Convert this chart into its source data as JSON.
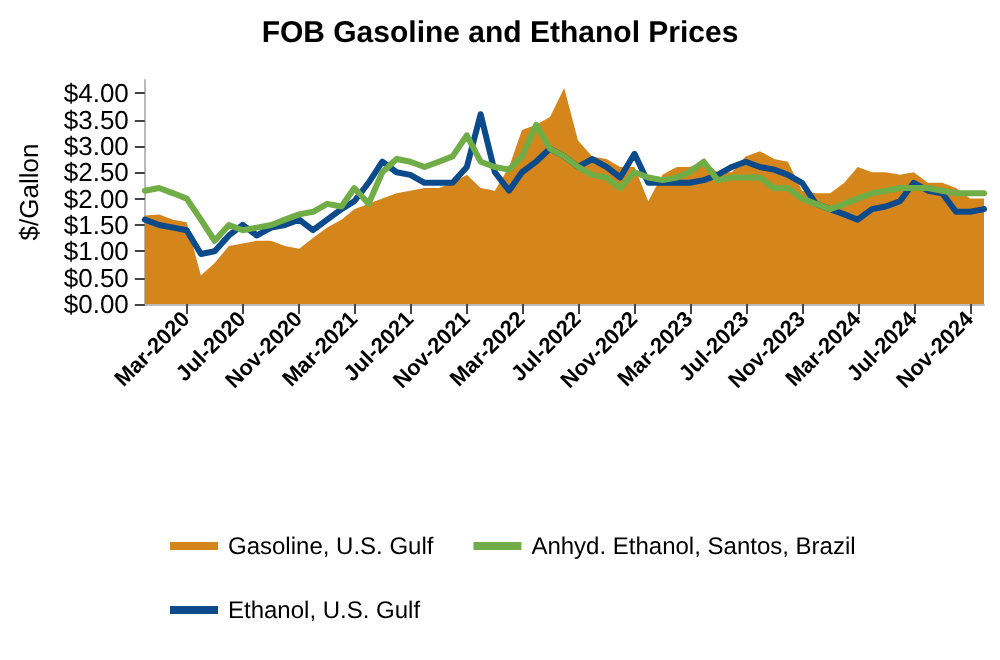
{
  "chart_data": {
    "type": "area",
    "title": "FOB Gasoline and Ethanol Prices",
    "ylabel": "$/Gallon",
    "x": [
      "2019-12",
      "2020-01",
      "2020-02",
      "2020-03",
      "2020-04",
      "2020-05",
      "2020-06",
      "2020-07",
      "2020-08",
      "2020-09",
      "2020-10",
      "2020-11",
      "2020-12",
      "2021-01",
      "2021-02",
      "2021-03",
      "2021-04",
      "2021-05",
      "2021-06",
      "2021-07",
      "2021-08",
      "2021-09",
      "2021-10",
      "2021-11",
      "2021-12",
      "2022-01",
      "2022-02",
      "2022-03",
      "2022-04",
      "2022-05",
      "2022-06",
      "2022-07",
      "2022-08",
      "2022-09",
      "2022-10",
      "2022-11",
      "2022-12",
      "2023-01",
      "2023-02",
      "2023-03",
      "2023-04",
      "2023-05",
      "2023-06",
      "2023-07",
      "2023-08",
      "2023-09",
      "2023-10",
      "2023-11",
      "2023-12",
      "2024-01",
      "2024-02",
      "2024-03",
      "2024-04",
      "2024-05",
      "2024-06",
      "2024-07",
      "2024-08",
      "2024-09",
      "2024-10",
      "2024-11",
      "2024-12"
    ],
    "series": [
      {
        "name": "Gasoline, U.S. Gulf",
        "color": "#d4861c",
        "values": [
          1.68,
          1.7,
          1.6,
          1.55,
          0.54,
          0.78,
          1.1,
          1.15,
          1.2,
          1.2,
          1.1,
          1.05,
          1.25,
          1.45,
          1.6,
          1.8,
          1.9,
          2.0,
          2.1,
          2.15,
          2.2,
          2.2,
          2.3,
          2.45,
          2.2,
          2.15,
          2.6,
          3.3,
          3.4,
          3.55,
          4.1,
          3.1,
          2.8,
          2.75,
          2.6,
          2.6,
          1.95,
          2.45,
          2.6,
          2.6,
          2.7,
          2.5,
          2.5,
          2.8,
          2.9,
          2.75,
          2.7,
          2.15,
          2.1,
          2.1,
          2.3,
          2.6,
          2.5,
          2.5,
          2.45,
          2.5,
          2.3,
          2.3,
          2.2,
          2.0,
          2.0
        ]
      },
      {
        "name": "Anhyd. Ethanol, Santos, Brazil",
        "type": "line",
        "color": "#70ad47",
        "values": [
          2.15,
          2.2,
          2.1,
          2.0,
          1.6,
          1.2,
          1.5,
          1.4,
          1.45,
          1.5,
          1.6,
          1.7,
          1.75,
          1.9,
          1.85,
          2.2,
          1.9,
          2.5,
          2.75,
          2.7,
          2.6,
          2.7,
          2.8,
          3.2,
          2.7,
          2.6,
          2.55,
          2.8,
          3.4,
          2.95,
          2.8,
          2.6,
          2.45,
          2.4,
          2.2,
          2.5,
          2.4,
          2.35,
          2.4,
          2.5,
          2.7,
          2.35,
          2.4,
          2.4,
          2.4,
          2.2,
          2.2,
          2.0,
          1.9,
          1.8,
          1.9,
          2.0,
          2.1,
          2.15,
          2.2,
          2.2,
          2.2,
          2.15,
          2.1,
          2.1,
          2.1
        ]
      },
      {
        "name": "Ethanol, U.S. Gulf",
        "type": "line",
        "color": "#0b4a8b",
        "values": [
          1.6,
          1.5,
          1.45,
          1.4,
          0.95,
          1.0,
          1.3,
          1.5,
          1.3,
          1.45,
          1.5,
          1.6,
          1.4,
          1.6,
          1.8,
          1.95,
          2.3,
          2.7,
          2.5,
          2.45,
          2.3,
          2.3,
          2.3,
          2.6,
          3.6,
          2.5,
          2.15,
          2.5,
          2.7,
          2.95,
          2.8,
          2.6,
          2.75,
          2.6,
          2.4,
          2.85,
          2.3,
          2.3,
          2.3,
          2.3,
          2.35,
          2.45,
          2.6,
          2.7,
          2.6,
          2.55,
          2.45,
          2.3,
          1.9,
          1.8,
          1.7,
          1.6,
          1.8,
          1.85,
          1.95,
          2.3,
          2.15,
          2.1,
          1.75,
          1.75,
          1.8
        ]
      }
    ],
    "xlim": [
      "2019-12",
      "2024-12"
    ],
    "xticks": [
      {
        "value": "2020-03",
        "label": "Mar-2020"
      },
      {
        "value": "2020-07",
        "label": "Jul-2020"
      },
      {
        "value": "2020-11",
        "label": "Nov-2020"
      },
      {
        "value": "2021-03",
        "label": "Mar-2021"
      },
      {
        "value": "2021-07",
        "label": "Jul-2021"
      },
      {
        "value": "2021-11",
        "label": "Nov-2021"
      },
      {
        "value": "2022-03",
        "label": "Mar-2022"
      },
      {
        "value": "2022-07",
        "label": "Jul-2022"
      },
      {
        "value": "2022-11",
        "label": "Nov-2022"
      },
      {
        "value": "2023-03",
        "label": "Mar-2023"
      },
      {
        "value": "2023-07",
        "label": "Jul-2023"
      },
      {
        "value": "2023-11",
        "label": "Nov-2023"
      },
      {
        "value": "2024-03",
        "label": "Mar-2024"
      },
      {
        "value": "2024-07",
        "label": "Jul-2024"
      },
      {
        "value": "2024-11",
        "label": "Nov-2024"
      }
    ],
    "ylim": [
      0,
      4.25
    ],
    "yticks": [
      {
        "value": 0,
        "label": "$0.00"
      },
      {
        "value": 0.5,
        "label": "$0.50"
      },
      {
        "value": 1,
        "label": "$1.00"
      },
      {
        "value": 1.5,
        "label": "$1.50"
      },
      {
        "value": 2,
        "label": "$2.00"
      },
      {
        "value": 2.5,
        "label": "$2.50"
      },
      {
        "value": 3,
        "label": "$3.00"
      },
      {
        "value": 3.5,
        "label": "$3.50"
      },
      {
        "value": 4,
        "label": "$4.00"
      }
    ],
    "grid": false,
    "legend": "bottom",
    "line_style": "solid",
    "marker": "none"
  }
}
